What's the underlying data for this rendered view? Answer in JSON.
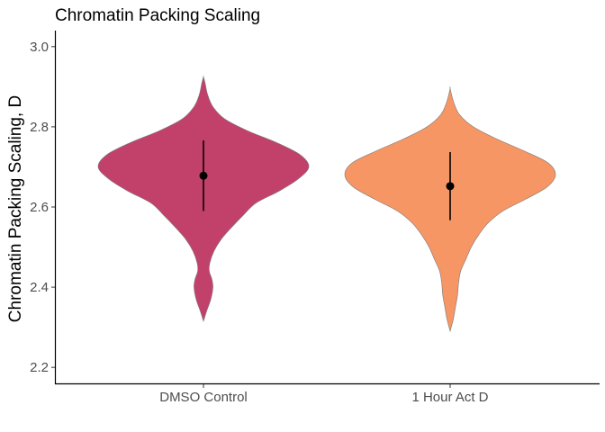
{
  "chart_data": {
    "type": "violin",
    "title": "Chromatin Packing Scaling",
    "xlabel": "",
    "ylabel": "Chromatin Packing Scaling, D",
    "ylim": [
      2.16,
      3.04
    ],
    "yticks": [
      2.2,
      2.4,
      2.6,
      2.8,
      3.0
    ],
    "ytick_labels": [
      "2.2",
      "2.4",
      "2.6",
      "2.8",
      "3.0"
    ],
    "grid": false,
    "legend": "none",
    "categories": [
      "DMSO Control",
      "1 Hour Act D"
    ],
    "series": [
      {
        "category": "DMSO Control",
        "color": "#c2416b",
        "mean": 2.678,
        "error_low": 2.59,
        "error_high": 2.766,
        "min": 2.315,
        "max": 2.925,
        "density": [
          [
            2.315,
            0.0
          ],
          [
            2.34,
            0.03
          ],
          [
            2.37,
            0.07
          ],
          [
            2.4,
            0.09
          ],
          [
            2.42,
            0.08
          ],
          [
            2.44,
            0.055
          ],
          [
            2.46,
            0.06
          ],
          [
            2.49,
            0.1
          ],
          [
            2.52,
            0.17
          ],
          [
            2.55,
            0.27
          ],
          [
            2.58,
            0.38
          ],
          [
            2.61,
            0.5
          ],
          [
            2.64,
            0.72
          ],
          [
            2.67,
            0.9
          ],
          [
            2.7,
            1.0
          ],
          [
            2.73,
            0.92
          ],
          [
            2.76,
            0.7
          ],
          [
            2.79,
            0.42
          ],
          [
            2.82,
            0.2
          ],
          [
            2.85,
            0.09
          ],
          [
            2.88,
            0.04
          ],
          [
            2.91,
            0.015
          ],
          [
            2.925,
            0.0
          ]
        ]
      },
      {
        "category": "1 Hour Act D",
        "color": "#f79665",
        "mean": 2.652,
        "error_low": 2.567,
        "error_high": 2.737,
        "min": 2.29,
        "max": 2.895,
        "density": [
          [
            2.29,
            0.0
          ],
          [
            2.32,
            0.03
          ],
          [
            2.35,
            0.05
          ],
          [
            2.38,
            0.07
          ],
          [
            2.41,
            0.08
          ],
          [
            2.44,
            0.1
          ],
          [
            2.47,
            0.15
          ],
          [
            2.5,
            0.2
          ],
          [
            2.53,
            0.27
          ],
          [
            2.56,
            0.36
          ],
          [
            2.59,
            0.5
          ],
          [
            2.62,
            0.72
          ],
          [
            2.65,
            0.92
          ],
          [
            2.68,
            1.0
          ],
          [
            2.71,
            0.93
          ],
          [
            2.74,
            0.7
          ],
          [
            2.77,
            0.44
          ],
          [
            2.8,
            0.22
          ],
          [
            2.83,
            0.09
          ],
          [
            2.86,
            0.035
          ],
          [
            2.895,
            0.0
          ]
        ]
      }
    ]
  }
}
